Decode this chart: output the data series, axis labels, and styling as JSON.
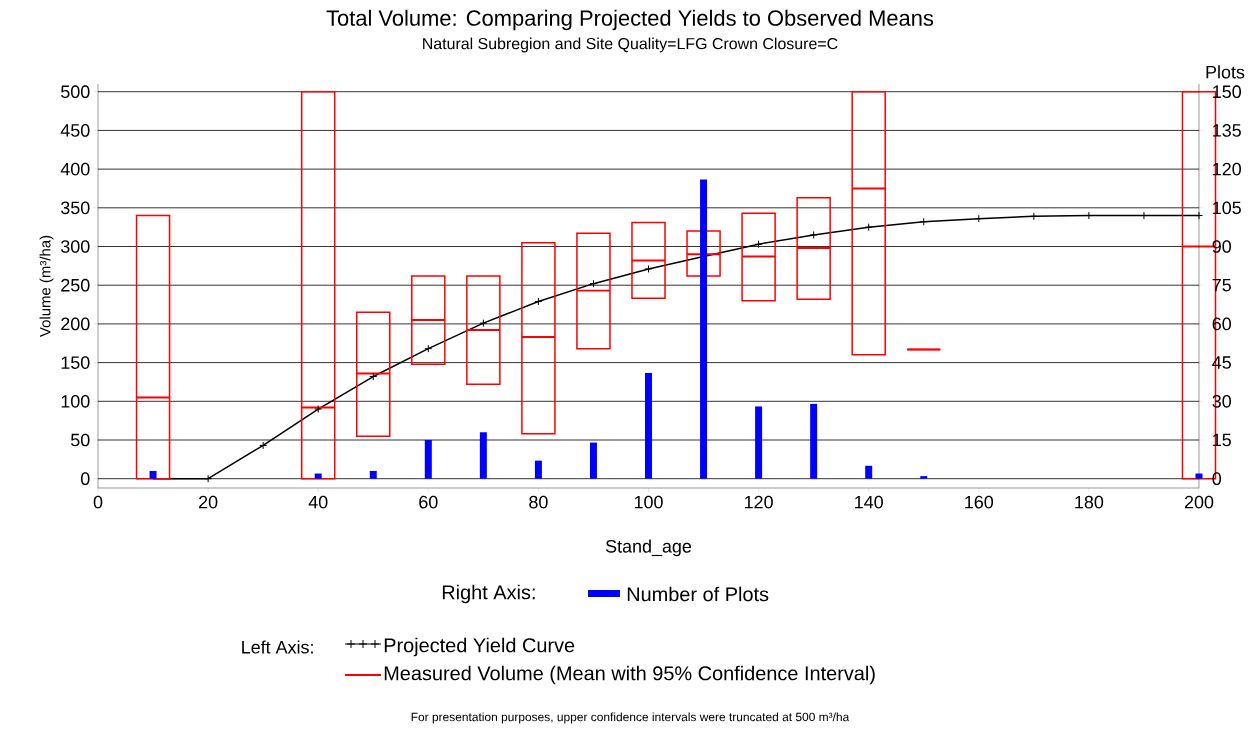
{
  "chart_data": {
    "type": "line",
    "title": "Total Volume: Comparing Projected Yields to Observed Means",
    "subtitle": "Natural Subregion and Site Quality=LFG      Crown Closure=C",
    "xlabel": "Stand_age",
    "ylabel": "Volume (m³/ha)",
    "y2label": "Plots",
    "xlim": [
      0,
      200
    ],
    "xticks": [
      0,
      20,
      40,
      60,
      80,
      100,
      120,
      140,
      160,
      180,
      200
    ],
    "ylim": [
      -12,
      510
    ],
    "yticks": [
      0,
      50,
      100,
      150,
      200,
      250,
      300,
      350,
      400,
      450,
      500
    ],
    "y2lim": [
      -3.6,
      153
    ],
    "y2ticks": [
      0,
      15,
      30,
      45,
      60,
      75,
      90,
      105,
      120,
      135,
      150
    ],
    "grid": "y",
    "legend": "bottom",
    "series": [
      {
        "name": "Number of Plots",
        "type": "bar",
        "axis": "y2",
        "color": "#0000ff",
        "x": [
          10,
          40,
          50,
          60,
          70,
          80,
          90,
          100,
          110,
          120,
          130,
          140,
          150,
          200
        ],
        "values": [
          3,
          2,
          3,
          15,
          18,
          7,
          14,
          41,
          116,
          28,
          29,
          5,
          1,
          2
        ]
      },
      {
        "name": "Projected Yield Curve",
        "color": "#000000",
        "marker": "cross",
        "x": [
          10,
          20,
          30,
          40,
          50,
          60,
          70,
          80,
          90,
          100,
          110,
          120,
          130,
          140,
          150,
          160,
          170,
          180,
          190,
          200
        ],
        "values": [
          0,
          0,
          43,
          90,
          132,
          168,
          201,
          229,
          252,
          271,
          287,
          303,
          315,
          325,
          332,
          336,
          339,
          340,
          340,
          340
        ]
      },
      {
        "name": "Measured Volume (Mean with 95% Confidence Interval)",
        "type": "box",
        "color": "#ff0000",
        "x": [
          10,
          40,
          50,
          60,
          70,
          80,
          90,
          100,
          110,
          120,
          130,
          140,
          150,
          200
        ],
        "boxes": [
          {
            "low": 0,
            "q1": 0,
            "median": 105,
            "q3": 340,
            "high": 340
          },
          {
            "low": 0,
            "q1": 0,
            "median": 92,
            "q3": 500,
            "high": 500
          },
          {
            "low": 55,
            "q1": 55,
            "median": 136,
            "q3": 215,
            "high": 215
          },
          {
            "low": 148,
            "q1": 148,
            "median": 205,
            "q3": 262,
            "high": 262
          },
          {
            "low": 122,
            "q1": 122,
            "median": 192,
            "q3": 262,
            "high": 262
          },
          {
            "low": 58,
            "q1": 58,
            "median": 183,
            "q3": 305,
            "high": 305
          },
          {
            "low": 168,
            "q1": 168,
            "median": 243,
            "q3": 317,
            "high": 317
          },
          {
            "low": 233,
            "q1": 233,
            "median": 282,
            "q3": 331,
            "high": 331
          },
          {
            "low": 262,
            "q1": 262,
            "median": 290,
            "q3": 320,
            "high": 320
          },
          {
            "low": 230,
            "q1": 230,
            "median": 287,
            "q3": 343,
            "high": 343
          },
          {
            "low": 232,
            "q1": 232,
            "median": 298,
            "q3": 363,
            "high": 363
          },
          {
            "low": 160,
            "q1": 160,
            "median": 375,
            "q3": 500,
            "high": 500
          },
          {
            "low": 167,
            "q1": 167,
            "median": 167,
            "q3": 167,
            "high": 167
          },
          {
            "low": 0,
            "q1": 0,
            "median": 300,
            "q3": 500,
            "high": 500
          }
        ]
      }
    ],
    "annotations": [
      "Right Axis:",
      "Left Axis:",
      "For presentation purposes, upper confidence intervals were truncated at 500 m³/ha"
    ]
  }
}
